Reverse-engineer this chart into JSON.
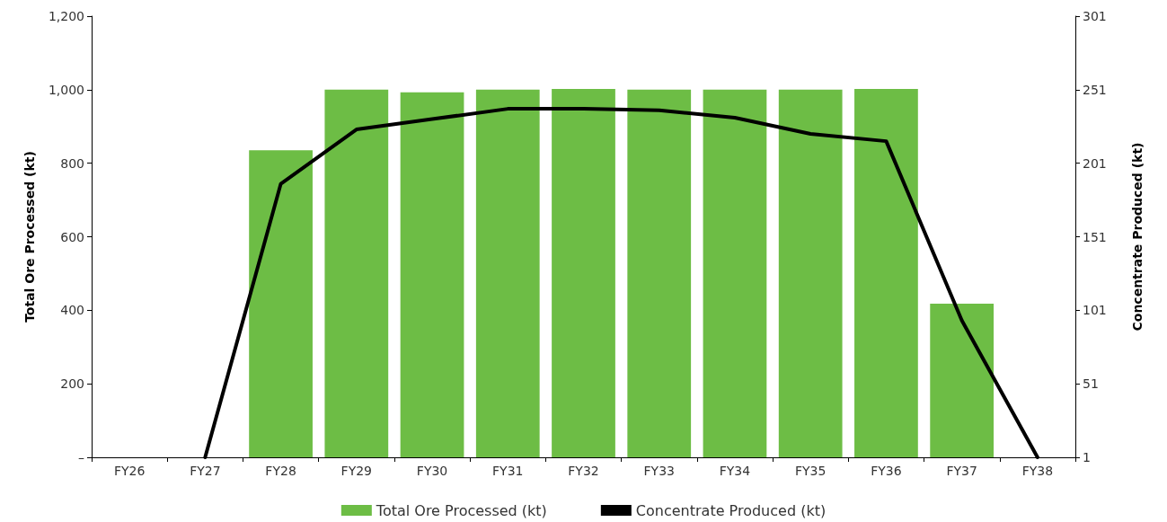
{
  "chart_data": {
    "type": "bar",
    "categories": [
      "FY26",
      "FY27",
      "FY28",
      "FY29",
      "FY30",
      "FY31",
      "FY32",
      "FY33",
      "FY34",
      "FY35",
      "FY36",
      "FY37",
      "FY38"
    ],
    "series": [
      {
        "name": "Total Ore Processed (kt)",
        "color": "#6dbd45",
        "values": [
          null,
          null,
          835,
          1000,
          993,
          1000,
          1002,
          1000,
          1000,
          1000,
          1002,
          418,
          null
        ]
      },
      {
        "name": "Concentrate Produced (kt)",
        "type": "line",
        "axis": "y2",
        "color": "#000000",
        "values": [
          null,
          1,
          187,
          224,
          231,
          238,
          238,
          237,
          232,
          221,
          216,
          94,
          1
        ]
      }
    ],
    "ylabel": "Total Ore Processed (kt)",
    "y2label": "Concentrate Produced (kt)",
    "ylim": [
      0,
      1200
    ],
    "yticks": [
      {
        "value": 0,
        "label": "–"
      },
      200,
      400,
      600,
      800,
      {
        "value": 1000,
        "label": "1,000"
      },
      {
        "value": 1200,
        "label": "1,200"
      }
    ],
    "y2lim": [
      1,
      301
    ],
    "y2ticks": [
      1,
      51,
      101,
      151,
      201,
      251,
      301
    ],
    "grid": false,
    "legend": "bottom",
    "marker": "none",
    "line_style": "solid"
  }
}
